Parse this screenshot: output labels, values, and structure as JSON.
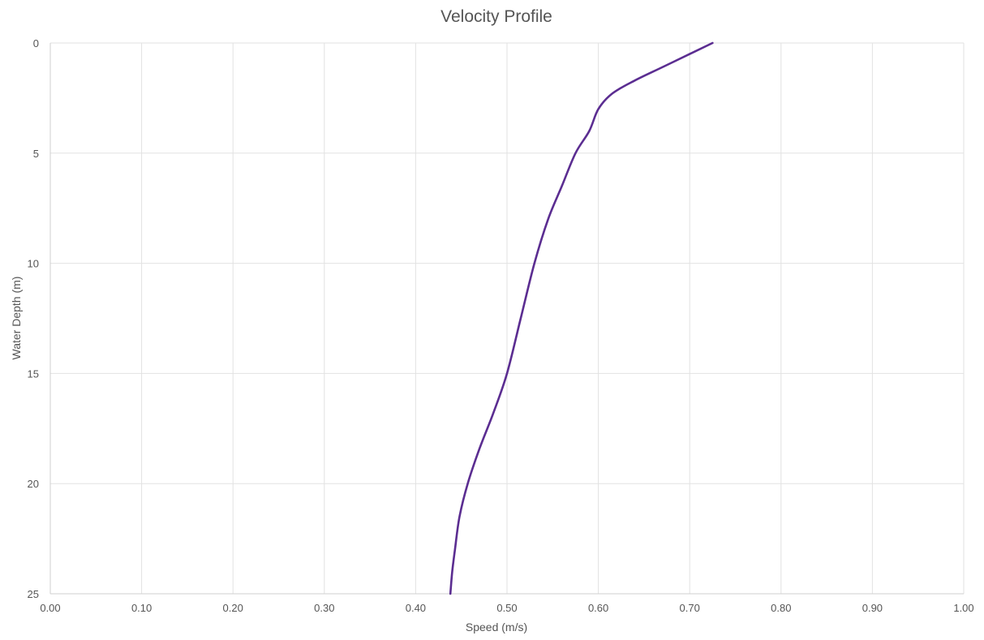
{
  "chart_data": {
    "type": "line",
    "title": "Velocity Profile",
    "xlabel": "Speed (m/s)",
    "ylabel": "Water Depth (m)",
    "xlim": [
      0,
      1
    ],
    "ylim": [
      0,
      25
    ],
    "y_inverted": true,
    "grid": true,
    "x_ticks": [
      "0.00",
      "0.10",
      "0.20",
      "0.30",
      "0.40",
      "0.50",
      "0.60",
      "0.70",
      "0.80",
      "0.90",
      "1.00"
    ],
    "y_ticks": [
      "0",
      "5",
      "10",
      "15",
      "20",
      "25"
    ],
    "series": [
      {
        "color": "#5b2d91",
        "x": [
          0.725,
          0.7,
          0.67,
          0.64,
          0.615,
          0.6,
          0.59,
          0.575,
          0.56,
          0.545,
          0.53,
          0.515,
          0.5,
          0.485,
          0.47,
          0.457,
          0.448,
          0.443,
          0.44,
          0.438
        ],
        "y": [
          0,
          0.5,
          1.1,
          1.7,
          2.3,
          3.0,
          4.0,
          5.0,
          6.5,
          8.0,
          10.0,
          12.5,
          15.0,
          16.8,
          18.4,
          20.0,
          21.5,
          23.0,
          24.0,
          25.0
        ]
      }
    ]
  }
}
